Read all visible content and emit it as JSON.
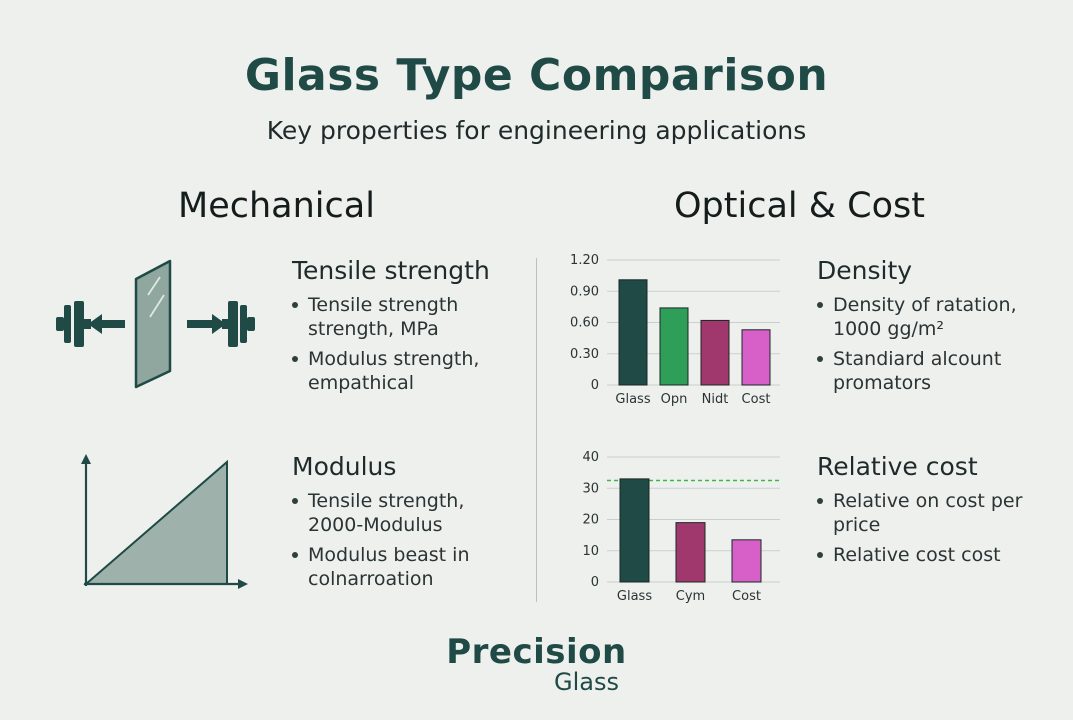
{
  "header": {
    "title": "Glass Type Comparison",
    "subtitle": "Key properties for engineering applications"
  },
  "sections": {
    "mechanical": "Mechanical",
    "optical": "Optical & Cost"
  },
  "mechanical": {
    "tensile": {
      "title": "Tensile strength",
      "bullets": [
        "Tensile strength strength, MPa",
        "Modulus strength, empathical"
      ]
    },
    "modulus": {
      "title": "Modulus",
      "bullets": [
        "Tensile strength, 2000-Modulus",
        "Modulus beast in colnarroation"
      ]
    }
  },
  "optical": {
    "density": {
      "title": "Density",
      "bullets": [
        "Density of ratation, 1000 gg/m²",
        "Standiard alcount promators"
      ]
    },
    "cost": {
      "title": "Relative cost",
      "bullets": [
        "Relative on cost per price",
        "Relative cost cost"
      ]
    }
  },
  "chart_data": [
    {
      "type": "bar",
      "categories": [
        "Glass",
        "Opn",
        "Nidt",
        "Cost"
      ],
      "values": [
        1.01,
        0.74,
        0.62,
        0.53
      ],
      "ylim": [
        0,
        1.2
      ],
      "yticks": [
        "1.20",
        "0.90",
        "0.60",
        "0.30",
        "0"
      ],
      "ytick_values": [
        1.2,
        0.9,
        0.6,
        0.3,
        0
      ],
      "colors": [
        "#1f4a45",
        "#2e9e58",
        "#a0386e",
        "#d660c8"
      ],
      "grid": true
    },
    {
      "type": "bar",
      "categories": [
        "Glass",
        "Cym",
        "Cost"
      ],
      "values": [
        33,
        19,
        13.5
      ],
      "ylim": [
        0,
        40
      ],
      "yticks": [
        "40",
        "30",
        "20",
        "10",
        "0"
      ],
      "ytick_values": [
        40,
        30,
        20,
        10,
        0
      ],
      "colors": [
        "#1f4a45",
        "#a0386e",
        "#d660c8"
      ],
      "reference_line": 32.5,
      "reference_color": "#3cb54a",
      "grid": true
    }
  ],
  "logo": {
    "primary": "Precision",
    "secondary": "Glass"
  },
  "colors": {
    "accent": "#1f4a45",
    "background": "#eef0ee"
  }
}
